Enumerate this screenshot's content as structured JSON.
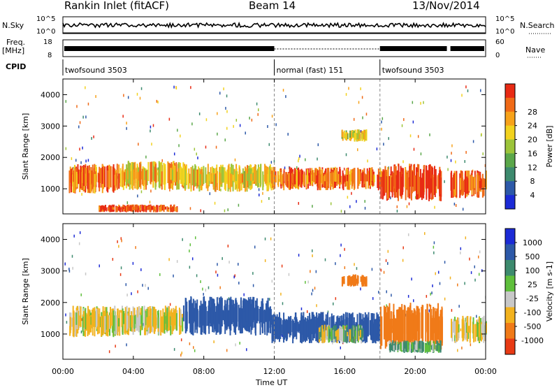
{
  "header": {
    "radar": "Rankin Inlet (fitACF)",
    "beam": "Beam 14",
    "date": "13/Nov/2014"
  },
  "strips": {
    "nsky_label": "N.Sky",
    "nsky_ticks": [
      "10^5",
      "10^0"
    ],
    "nsearch_label": "N.Search",
    "nsearch_ticks": [
      "10^5",
      "10^0"
    ],
    "freq_label_1": "Freq.",
    "freq_label_2": "[MHz]",
    "freq_ticks": [
      "18",
      "8"
    ],
    "nave_label": "Nave",
    "nave_ticks": [
      "60",
      "0"
    ],
    "cpid_label": "CPID",
    "modes": [
      {
        "label": "twofsound 3503",
        "start_h": 0,
        "end_h": 12
      },
      {
        "label": "normal (fast) 151",
        "start_h": 12,
        "end_h": 18
      },
      {
        "label": "twofsound 3503",
        "start_h": 18,
        "end_h": 24
      }
    ]
  },
  "x_axis": {
    "title": "Time UT",
    "ticks": [
      "00:00",
      "04:00",
      "08:00",
      "12:00",
      "16:00",
      "20:00",
      "00:00"
    ]
  },
  "chart_data": [
    {
      "type": "heatmap",
      "panel": "power",
      "ylabel": "Slant Range [km]",
      "y_ticks": [
        "1000",
        "2000",
        "3000",
        "4000"
      ],
      "xlim": [
        0,
        24
      ],
      "ylim": [
        200,
        4500
      ],
      "colorbar_label": "Power [dB]",
      "colorbar_ticks": [
        "4",
        "8",
        "12",
        "16",
        "20",
        "24",
        "28"
      ],
      "colors": [
        "#1c2bd6",
        "#2d59a8",
        "#3d8a6e",
        "#5ba74a",
        "#9cc43a",
        "#f2d21e",
        "#f7a21a",
        "#f06a17",
        "#e82a14"
      ],
      "bands": [
        {
          "t0": 0.3,
          "t1": 3.2,
          "r0": 850,
          "r1": 1800,
          "power": 24
        },
        {
          "t0": 3.2,
          "t1": 6.8,
          "r0": 950,
          "r1": 1900,
          "power": 20
        },
        {
          "t0": 6.8,
          "t1": 11.8,
          "r0": 900,
          "r1": 1800,
          "power": 18
        },
        {
          "t0": 11.8,
          "t1": 18,
          "r0": 950,
          "r1": 1700,
          "power": 24
        },
        {
          "t0": 18,
          "t1": 21.5,
          "r0": 600,
          "r1": 1800,
          "power": 28
        },
        {
          "t0": 22.0,
          "t1": 24,
          "r0": 700,
          "r1": 1600,
          "power": 26
        },
        {
          "t0": 15.8,
          "t1": 17.2,
          "r0": 2500,
          "r1": 2900,
          "power": 16
        },
        {
          "t0": 2.0,
          "t1": 6.5,
          "r0": 250,
          "r1": 500,
          "power": 26
        }
      ]
    },
    {
      "type": "heatmap",
      "panel": "velocity",
      "ylabel": "Slant Range [km]",
      "y_ticks": [
        "1000",
        "2000",
        "3000",
        "4000"
      ],
      "xlim": [
        0,
        24
      ],
      "ylim": [
        200,
        4500
      ],
      "colorbar_label": "Velocity [m s-1]",
      "colorbar_ticks": [
        "1000",
        "500",
        "100",
        "25",
        "-25",
        "-100",
        "-500",
        "-1000"
      ],
      "colors": [
        "#1c2bd6",
        "#2d59a8",
        "#3d8a6e",
        "#5fbf3c",
        "#c8c8c8",
        "#f2b21e",
        "#f07a18",
        "#e83a14"
      ],
      "bands": [
        {
          "t0": 0.3,
          "t1": 3.2,
          "r0": 900,
          "r1": 1900,
          "velocity": -100
        },
        {
          "t0": 3.2,
          "t1": 6.8,
          "r0": 950,
          "r1": 1900,
          "velocity": -100
        },
        {
          "t0": 6.8,
          "t1": 11.8,
          "r0": 950,
          "r1": 2200,
          "velocity": 500
        },
        {
          "t0": 11.8,
          "t1": 18,
          "r0": 700,
          "r1": 1700,
          "velocity": 500
        },
        {
          "t0": 14.5,
          "t1": 17,
          "r0": 700,
          "r1": 1300,
          "velocity": 25
        },
        {
          "t0": 18,
          "t1": 21.5,
          "r0": 500,
          "r1": 2000,
          "velocity": -500
        },
        {
          "t0": 18.5,
          "t1": 21.5,
          "r0": 400,
          "r1": 800,
          "velocity": 100
        },
        {
          "t0": 22.0,
          "t1": 24,
          "r0": 700,
          "r1": 1600,
          "velocity": -100
        },
        {
          "t0": 15.8,
          "t1": 17.2,
          "r0": 2500,
          "r1": 2900,
          "velocity": -500
        }
      ]
    }
  ]
}
